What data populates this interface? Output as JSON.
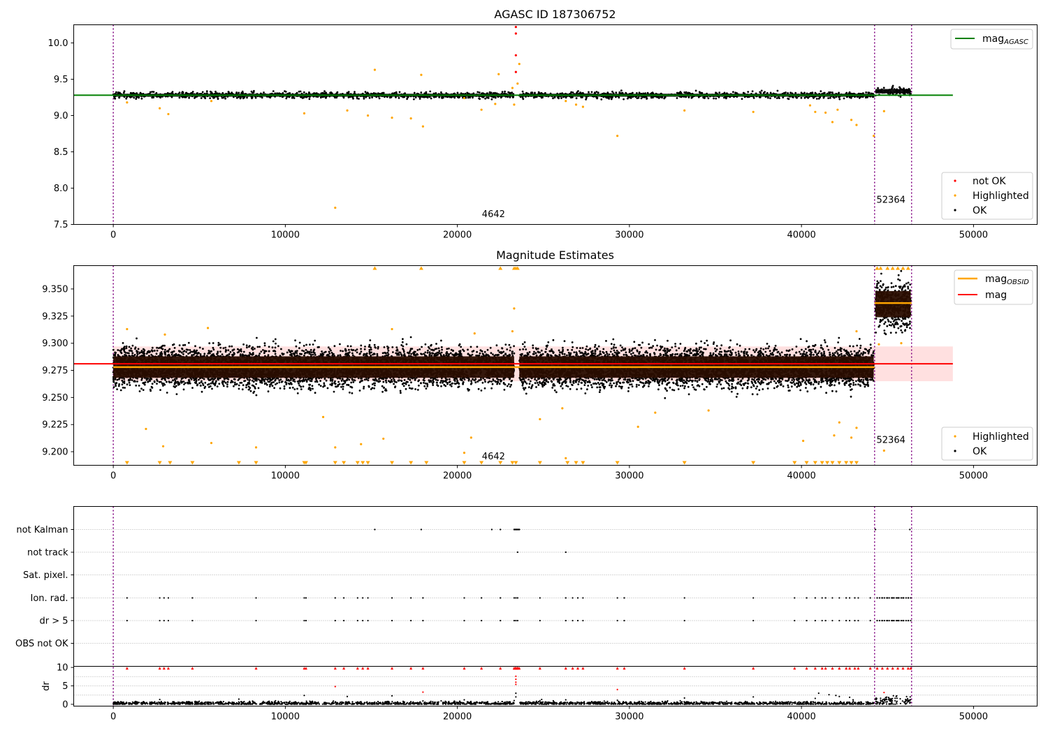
{
  "chart_data": [
    {
      "type": "scatter",
      "title": "AGASC ID 187306752",
      "xlim": [
        -2300,
        53700
      ],
      "ylim": [
        7.5,
        10.25
      ],
      "xticks": [
        0,
        10000,
        20000,
        30000,
        40000,
        50000
      ],
      "yticks": [
        7.5,
        8.0,
        8.5,
        9.0,
        9.5,
        10.0
      ],
      "ytick_labels": [
        "7.5",
        "8.0",
        "8.5",
        "9.0",
        "9.5",
        "10.0"
      ],
      "reference_lines": [
        {
          "name": "mag_AGASC",
          "value": 9.28,
          "x_range": [
            -2300,
            48800
          ],
          "color": "#008000"
        }
      ],
      "vertical_lines": [
        0,
        44250,
        46400
      ],
      "annotations": [
        {
          "text": "4642",
          "x": 22100,
          "y": 7.6
        },
        {
          "text": "52364",
          "x": 45200,
          "y": 7.8
        }
      ],
      "segments": [
        {
          "x": [
            0,
            23300
          ],
          "center": 9.28,
          "spread": 0.02
        },
        {
          "x": [
            23600,
            44200
          ],
          "center": 9.28,
          "spread": 0.02
        },
        {
          "x": [
            44300,
            46350
          ],
          "center": 9.335,
          "spread": 0.03
        }
      ],
      "series": [
        {
          "name": "not OK",
          "color": "#ff0000",
          "points": [
            [
              23400,
              10.22
            ],
            [
              23400,
              10.13
            ],
            [
              23400,
              9.83
            ],
            [
              23400,
              9.6
            ]
          ]
        },
        {
          "name": "Highlighted",
          "color": "#ffa500",
          "points": [
            [
              800,
              9.18
            ],
            [
              2700,
              9.1
            ],
            [
              3200,
              9.02
            ],
            [
              5700,
              9.2
            ],
            [
              11100,
              9.03
            ],
            [
              12900,
              7.73
            ],
            [
              13600,
              9.07
            ],
            [
              15200,
              9.63
            ],
            [
              14800,
              9.0
            ],
            [
              16200,
              8.97
            ],
            [
              17300,
              8.96
            ],
            [
              17900,
              9.56
            ],
            [
              18000,
              8.85
            ],
            [
              20400,
              9.24
            ],
            [
              21400,
              9.08
            ],
            [
              22200,
              9.16
            ],
            [
              22400,
              9.57
            ],
            [
              23200,
              9.38
            ],
            [
              23300,
              9.15
            ],
            [
              23500,
              9.44
            ],
            [
              23600,
              9.71
            ],
            [
              26300,
              9.2
            ],
            [
              26900,
              9.15
            ],
            [
              27300,
              9.12
            ],
            [
              29300,
              8.72
            ],
            [
              33200,
              9.07
            ],
            [
              37200,
              9.05
            ],
            [
              40500,
              9.14
            ],
            [
              40800,
              9.05
            ],
            [
              41400,
              9.04
            ],
            [
              41800,
              8.91
            ],
            [
              42100,
              9.08
            ],
            [
              42900,
              8.94
            ],
            [
              43200,
              8.87
            ],
            [
              44200,
              8.72
            ],
            [
              44800,
              9.06
            ]
          ]
        },
        {
          "name": "OK",
          "color": "#000000",
          "points": []
        }
      ],
      "legend_lines": [
        {
          "label": "mag",
          "sub": "AGASC",
          "color": "#008000"
        }
      ],
      "legend_markers": [
        {
          "label": "not OK",
          "color": "#ff0000"
        },
        {
          "label": "Highlighted",
          "color": "#ffa500"
        },
        {
          "label": "OK",
          "color": "#000000"
        }
      ]
    },
    {
      "type": "scatter",
      "title": "Magnitude Estimates",
      "xlim": [
        -2300,
        53700
      ],
      "ylim": [
        9.1875,
        9.3715
      ],
      "xticks": [
        0,
        10000,
        20000,
        30000,
        40000,
        50000
      ],
      "yticks": [
        9.2,
        9.225,
        9.25,
        9.275,
        9.3,
        9.325,
        9.35
      ],
      "ytick_labels": [
        "9.200",
        "9.225",
        "9.250",
        "9.275",
        "9.300",
        "9.325",
        "9.350"
      ],
      "band": {
        "y0": 9.265,
        "y1": 9.297,
        "x_range": [
          0,
          48800
        ],
        "color": "#ffcccc"
      },
      "reference_lines": [
        {
          "name": "mag",
          "value": 9.281,
          "x_range": [
            -2300,
            48800
          ],
          "color": "#ff0000"
        },
        {
          "name": "mag_OBSID 1",
          "value": 9.278,
          "x_range": [
            0,
            44250
          ],
          "color": "#ffa500"
        },
        {
          "name": "mag_OBSID 2",
          "value": 9.337,
          "x_range": [
            44250,
            46400
          ],
          "color": "#ffa500"
        }
      ],
      "vertical_lines": [
        0,
        44250,
        46400
      ],
      "annotations": [
        {
          "text": "4642",
          "x": 22100,
          "y": 9.193
        },
        {
          "text": "52364",
          "x": 45200,
          "y": 9.208
        }
      ],
      "segments": [
        {
          "x": [
            0,
            23300
          ],
          "center": 9.278,
          "spread": 0.009
        },
        {
          "x": [
            23600,
            44200
          ],
          "center": 9.278,
          "spread": 0.009
        },
        {
          "x": [
            44300,
            46350
          ],
          "center": 9.336,
          "spread": 0.011
        }
      ],
      "series": [
        {
          "name": "Highlighted",
          "color": "#ffa500",
          "points": [
            [
              1900,
              9.221
            ],
            [
              2900,
              9.205
            ],
            [
              5700,
              9.208
            ],
            [
              8300,
              9.204
            ],
            [
              12200,
              9.232
            ],
            [
              12900,
              9.204
            ],
            [
              14400,
              9.207
            ],
            [
              15700,
              9.212
            ],
            [
              20400,
              9.199
            ],
            [
              20800,
              9.213
            ],
            [
              23300,
              9.332
            ],
            [
              24800,
              9.23
            ],
            [
              26100,
              9.24
            ],
            [
              26300,
              9.194
            ],
            [
              30500,
              9.223
            ],
            [
              31500,
              9.236
            ],
            [
              34600,
              9.238
            ],
            [
              40100,
              9.21
            ],
            [
              41900,
              9.215
            ],
            [
              42200,
              9.227
            ],
            [
              42900,
              9.213
            ],
            [
              43200,
              9.222
            ],
            [
              44800,
              9.201
            ],
            [
              800,
              9.313
            ],
            [
              3000,
              9.308
            ],
            [
              5500,
              9.314
            ],
            [
              16200,
              9.313
            ],
            [
              21000,
              9.309
            ],
            [
              23200,
              9.311
            ],
            [
              43200,
              9.311
            ],
            [
              44500,
              9.299
            ],
            [
              45800,
              9.3
            ]
          ]
        },
        {
          "name": "OK",
          "color": "#000000",
          "points": []
        }
      ],
      "clipped_low_x": [
        800,
        2700,
        3300,
        4600,
        7300,
        8300,
        11100,
        11200,
        12900,
        13400,
        14200,
        14500,
        14800,
        16200,
        17300,
        18200,
        20400,
        21400,
        22500,
        23200,
        23400,
        24800,
        26400,
        26900,
        27300,
        29300,
        33200,
        37200,
        39600,
        40300,
        40800,
        41200,
        41500,
        41800,
        42200,
        42600,
        42900,
        43200
      ],
      "clipped_high_x": [
        15200,
        17900,
        22500,
        23300,
        23400,
        23500,
        44400,
        44600,
        45000,
        45300,
        45600,
        45900,
        46200
      ],
      "legend_lines": [
        {
          "label": "mag",
          "sub": "OBSID",
          "color": "#ffa500"
        },
        {
          "label": "mag",
          "sub": "",
          "color": "#ff0000"
        }
      ],
      "legend_markers": [
        {
          "label": "Highlighted",
          "color": "#ffa500"
        },
        {
          "label": "OK",
          "color": "#000000"
        }
      ]
    },
    {
      "type": "scatter",
      "title": "",
      "xlim": [
        -2300,
        53700
      ],
      "xticks": [
        0,
        10000,
        20000,
        30000,
        40000,
        50000
      ],
      "categories": [
        "not Kalman",
        "not track",
        "Sat. pixel.",
        "Ion. rad.",
        "dr > 5",
        "OBS not OK"
      ],
      "vertical_lines": [
        0,
        44250,
        46400
      ],
      "flags": {
        "not Kalman": [
          15200,
          17900,
          22000,
          22500,
          23300,
          23350,
          23400,
          23450,
          23500,
          23550,
          23600,
          44300,
          46300
        ],
        "not track": [
          23500,
          26300
        ],
        "Sat. pixel.": [],
        "Ion. rad.": [
          800,
          2700,
          2950,
          3200,
          4600,
          8300,
          11100,
          11200,
          12900,
          13400,
          14200,
          14500,
          14800,
          16200,
          17300,
          18000,
          20400,
          21400,
          22500,
          23300,
          23400,
          23500,
          24800,
          26300,
          26700,
          27000,
          27300,
          29300,
          29700,
          33200,
          37200,
          39600,
          40300,
          40800,
          41200,
          41400,
          41800,
          42200,
          42600,
          42800,
          43100,
          43300,
          44000,
          44400,
          44700,
          45000,
          45300,
          45600,
          45900,
          46200,
          46350
        ],
        "dr > 5": [
          800,
          2700,
          2950,
          3200,
          4600,
          8300,
          11100,
          11200,
          12900,
          13400,
          14200,
          14500,
          14800,
          16200,
          17300,
          18000,
          20400,
          21400,
          22500,
          23300,
          23400,
          23500,
          24800,
          26300,
          26700,
          27000,
          27300,
          29300,
          29700,
          33200,
          37200,
          39600,
          40300,
          40800,
          41200,
          41400,
          41800,
          42200,
          42600,
          42800,
          43100,
          43300,
          44000,
          44400,
          44700,
          45000,
          45300,
          45600,
          45900,
          46200,
          46350
        ],
        "OBS not OK": []
      },
      "dr_panel": {
        "ylabel": "dr",
        "ylim": [
          -0.5,
          10.3
        ],
        "yticks": [
          0,
          5,
          10
        ],
        "ytick_labels": [
          "0",
          "5",
          "10"
        ],
        "clipped_x": [
          800,
          2700,
          2950,
          3200,
          4600,
          8300,
          11100,
          11200,
          12900,
          13400,
          14200,
          14500,
          14800,
          16200,
          17300,
          18000,
          20400,
          21400,
          22500,
          23300,
          23400,
          23500,
          24800,
          26300,
          26700,
          27000,
          27300,
          29300,
          29700,
          33200,
          37200,
          39600,
          40300,
          40800,
          41200,
          41400,
          41800,
          42200,
          42600,
          42800,
          43100,
          43300,
          44000,
          44400,
          44700,
          45000,
          45300,
          45600,
          45900,
          46200,
          46350
        ],
        "red_points": [
          [
            12900,
            4.8
          ],
          [
            18000,
            3.3
          ],
          [
            23400,
            7.6
          ],
          [
            23400,
            6.8
          ],
          [
            23400,
            6.0
          ],
          [
            23400,
            5.4
          ],
          [
            29300,
            4.0
          ],
          [
            44800,
            3.2
          ]
        ],
        "black_points": [
          [
            2700,
            1.3
          ],
          [
            7300,
            1.4
          ],
          [
            11100,
            2.4
          ],
          [
            13600,
            2.1
          ],
          [
            16200,
            2.3
          ],
          [
            18000,
            0.9
          ],
          [
            20400,
            1.2
          ],
          [
            23400,
            3.0
          ],
          [
            23400,
            2.0
          ],
          [
            23300,
            1.0
          ],
          [
            24900,
            1.3
          ],
          [
            26300,
            1.2
          ],
          [
            29300,
            1.1
          ],
          [
            33200,
            1.7
          ],
          [
            37200,
            2.0
          ],
          [
            40800,
            1.6
          ],
          [
            41000,
            3.0
          ],
          [
            41600,
            2.6
          ],
          [
            42000,
            2.4
          ],
          [
            42200,
            2.1
          ],
          [
            42800,
            1.9
          ],
          [
            43000,
            1.2
          ],
          [
            44300,
            1.4
          ],
          [
            44600,
            1.1
          ]
        ],
        "segments": [
          {
            "x": [
              0,
              23300
            ],
            "center": 0.25,
            "spread": 0.25
          },
          {
            "x": [
              23600,
              44200
            ],
            "center": 0.25,
            "spread": 0.25
          },
          {
            "x": [
              44300,
              46350
            ],
            "center": 0.9,
            "spread": 0.7
          }
        ]
      }
    }
  ]
}
